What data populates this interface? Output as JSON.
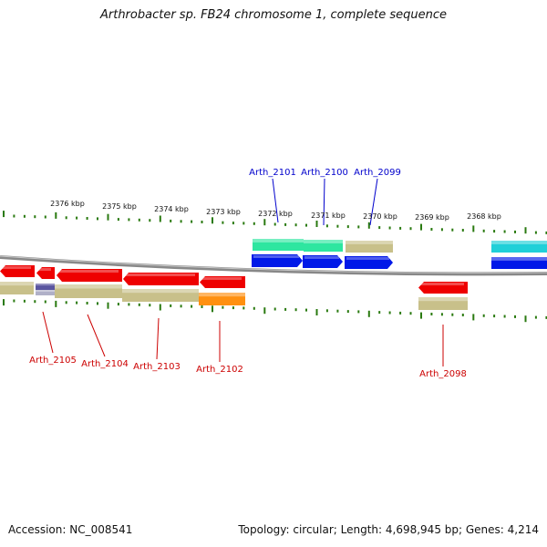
{
  "title": "Arthrobacter sp. FB24 chromosome 1, complete sequence",
  "footer": {
    "accession": "Accession: NC_008541",
    "summary": "Topology: circular; Length: 4,698,945 bp; Genes: 4,214"
  },
  "scale_labels": [
    "2376 kbp",
    "2375 kbp",
    "2374 kbp",
    "2373 kbp",
    "2372 kbp",
    "2371 kbp",
    "2370 kbp",
    "2369 kbp",
    "2368 kbp"
  ],
  "gene_labels_top": [
    "Arth_2101",
    "Arth_2100",
    "Arth_2099"
  ],
  "gene_labels_bottom": [
    "Arth_2105",
    "Arth_2104",
    "Arth_2103",
    "Arth_2102",
    "Arth_2098"
  ],
  "colors": {
    "forward_label": "#0000cc",
    "reverse_label": "#cc0000",
    "cds_forward": "#0018e8",
    "cds_reverse": "#ee0000",
    "feature_green": "#2ee6a0",
    "feature_cyan": "#20d0d8",
    "feature_tan": "#c8c08a",
    "feature_orange": "#ff9010",
    "feature_purple": "#5a55a0",
    "tick": "#2a7a10",
    "backbone": "#888888"
  }
}
